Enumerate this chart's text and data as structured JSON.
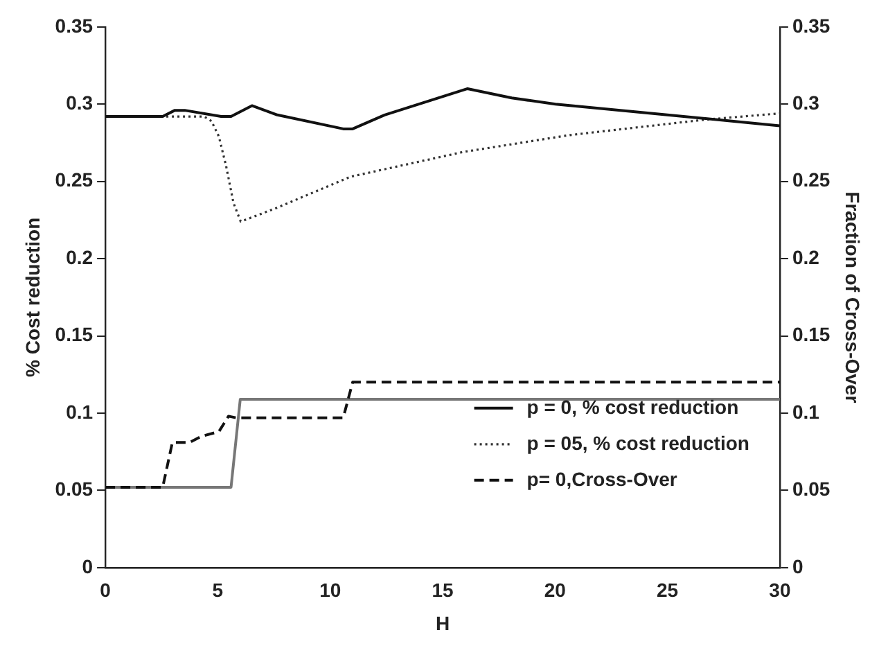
{
  "chart_data": {
    "type": "line",
    "xlabel": "H",
    "ylabel": "% Cost reduction",
    "y2label": "Fraction of Cross-Over",
    "xlim": [
      0,
      30
    ],
    "xticks": [
      0,
      5,
      10,
      15,
      20,
      25,
      30
    ],
    "ylim": [
      0,
      0.35
    ],
    "yticks": [
      0,
      0.05,
      0.1,
      0.15,
      0.2,
      0.25,
      0.3,
      0.35
    ],
    "y2lim": [
      0,
      0.35
    ],
    "y2ticks": [
      0,
      0.05,
      0.1,
      0.15,
      0.2,
      0.25,
      0.3,
      0.35
    ],
    "grid": false,
    "legend": "bottom right",
    "marker": "none",
    "series": [
      {
        "name": "p = 0, % cost reduction",
        "color": "#111111",
        "line_style": "solid",
        "x": [
          0,
          2.55,
          3.09,
          3.53,
          5.15,
          5.59,
          6.52,
          7.65,
          10.58,
          11.0,
          12.42,
          16.11,
          18.07,
          20.02,
          25.0,
          30
        ],
        "values": [
          0.292,
          0.292,
          0.296,
          0.296,
          0.292,
          0.292,
          0.299,
          0.293,
          0.284,
          0.284,
          0.293,
          0.31,
          0.304,
          0.3,
          0.293,
          0.286
        ]
      },
      {
        "name": "p = 05, % cost reduction",
        "color": "#333333",
        "line_style": "dotted",
        "x": [
          0,
          4.39,
          4.72,
          5.05,
          5.37,
          5.7,
          6.02,
          7.65,
          10.9,
          15.9,
          20.67,
          26.7,
          30
        ],
        "values": [
          0.292,
          0.292,
          0.289,
          0.279,
          0.26,
          0.236,
          0.224,
          0.233,
          0.253,
          0.269,
          0.28,
          0.29,
          0.294
        ]
      },
      {
        "name": "p= 0,Cross-Over",
        "color": "#111111",
        "line_style": "dashed",
        "axis": "y2",
        "x": [
          0,
          2.55,
          2.98,
          3.74,
          4.28,
          5.05,
          5.48,
          5.8,
          10.58,
          11.0,
          30
        ],
        "values": [
          0.052,
          0.052,
          0.081,
          0.081,
          0.085,
          0.088,
          0.098,
          0.097,
          0.097,
          0.12,
          0.12
        ]
      },
      {
        "color": "#777777",
        "line_style": "solid",
        "axis": "y2",
        "x": [
          0,
          5.59,
          6.0,
          30
        ],
        "values": [
          0.052,
          0.052,
          0.109,
          0.109
        ]
      }
    ]
  }
}
